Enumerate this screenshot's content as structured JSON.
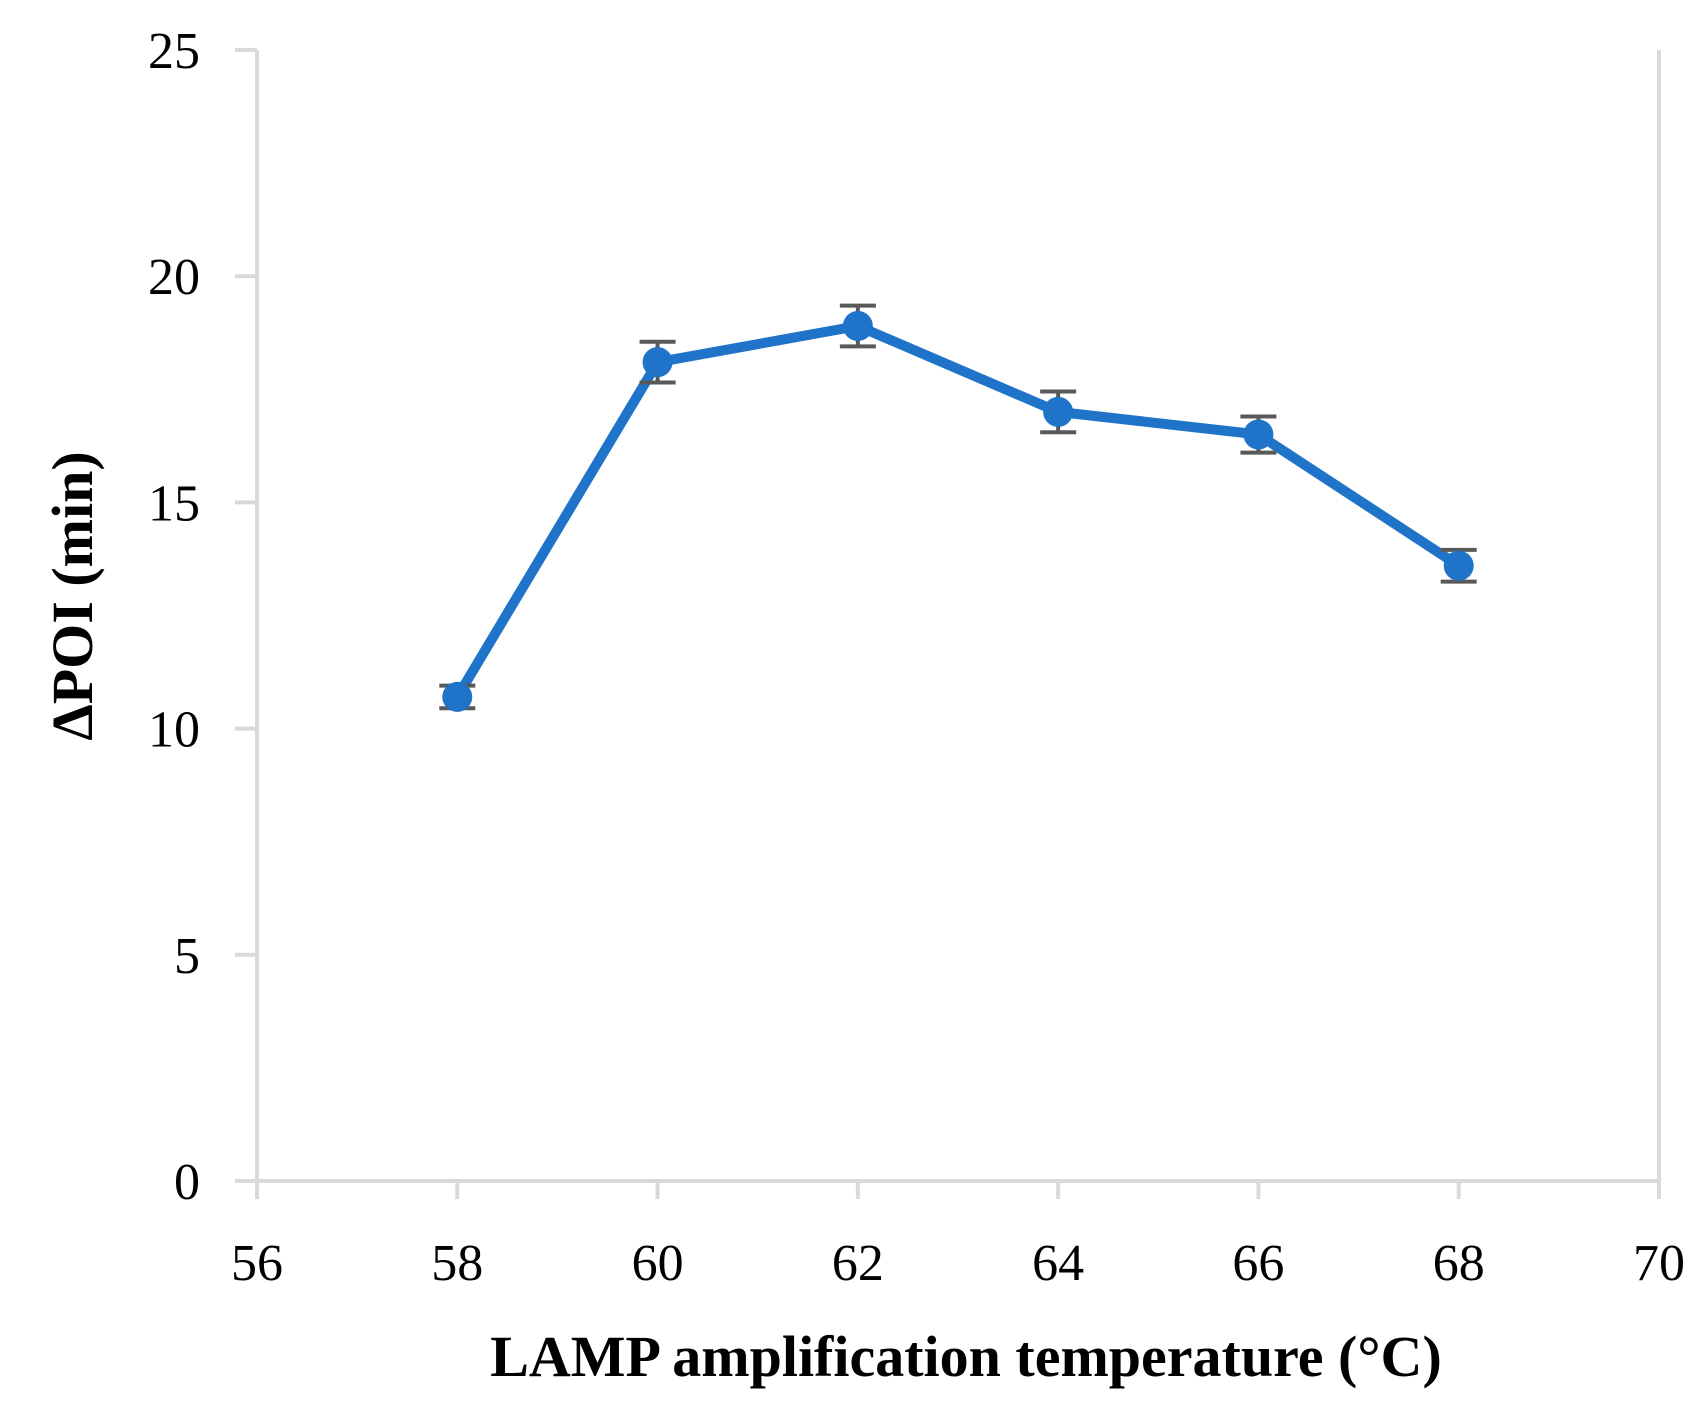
{
  "chart_data": {
    "type": "line",
    "title": "",
    "xlabel": "LAMP amplification temperature (°C)",
    "ylabel": "ΔPOI (min)",
    "xlim": [
      56,
      70
    ],
    "ylim": [
      0,
      25
    ],
    "x_ticks": [
      56,
      58,
      60,
      62,
      64,
      66,
      68,
      70
    ],
    "y_ticks": [
      0,
      5,
      10,
      15,
      20,
      25
    ],
    "x_tick_labels": [
      "56",
      "58",
      "60",
      "62",
      "64",
      "66",
      "68",
      "70"
    ],
    "y_tick_labels": [
      "0",
      "5",
      "10",
      "15",
      "20",
      "25"
    ],
    "grid": false,
    "series": [
      {
        "name": "ΔPOI",
        "color": "#1f73c8",
        "x": [
          58,
          60,
          62,
          64,
          66,
          68
        ],
        "values": [
          10.7,
          18.1,
          18.9,
          17.0,
          16.5,
          13.6
        ],
        "error": [
          0.25,
          0.45,
          0.45,
          0.45,
          0.4,
          0.35
        ]
      }
    ],
    "axis_color": "#d9d9d9",
    "errorbar_color": "#595959"
  }
}
